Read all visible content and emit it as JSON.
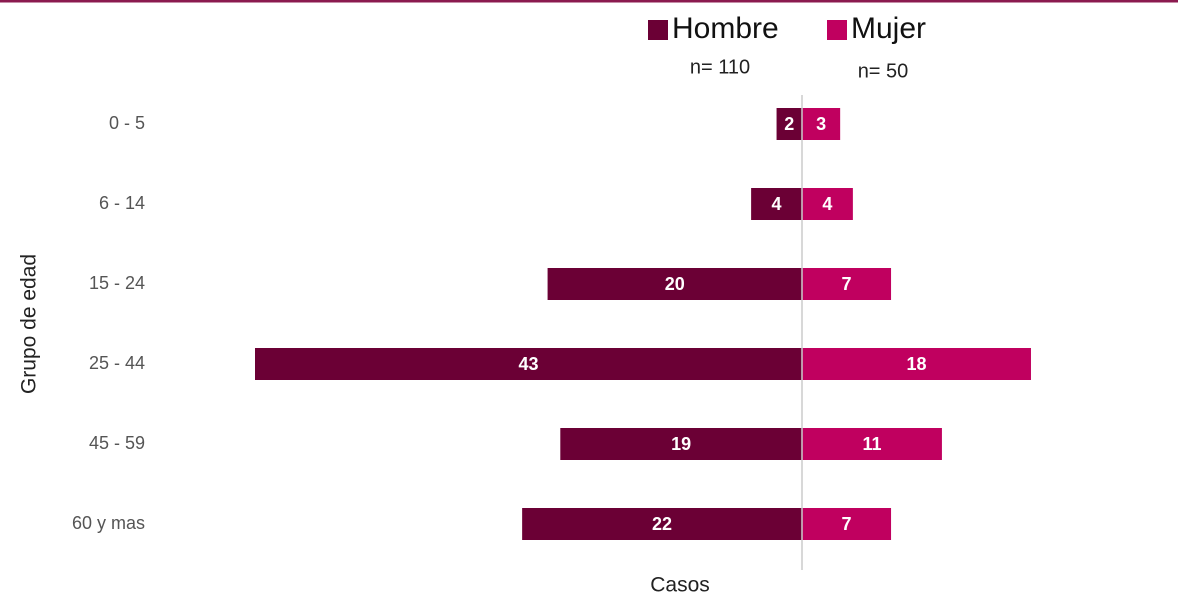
{
  "chart_data": {
    "type": "pyramid",
    "categories": [
      "0 - 5",
      "6 - 14",
      "15 - 24",
      "25 - 44",
      "45 - 59",
      "60 y mas"
    ],
    "series": [
      {
        "name": "Hombre",
        "color": "#6b0035",
        "values": [
          2,
          4,
          20,
          43,
          19,
          22
        ]
      },
      {
        "name": "Mujer",
        "color": "#c0005f",
        "values": [
          3,
          4,
          7,
          18,
          11,
          7
        ]
      }
    ],
    "annotations": [
      "n= 110",
      "n= 50"
    ],
    "xlabel": "Casos",
    "ylabel": "Grupo de edad"
  }
}
